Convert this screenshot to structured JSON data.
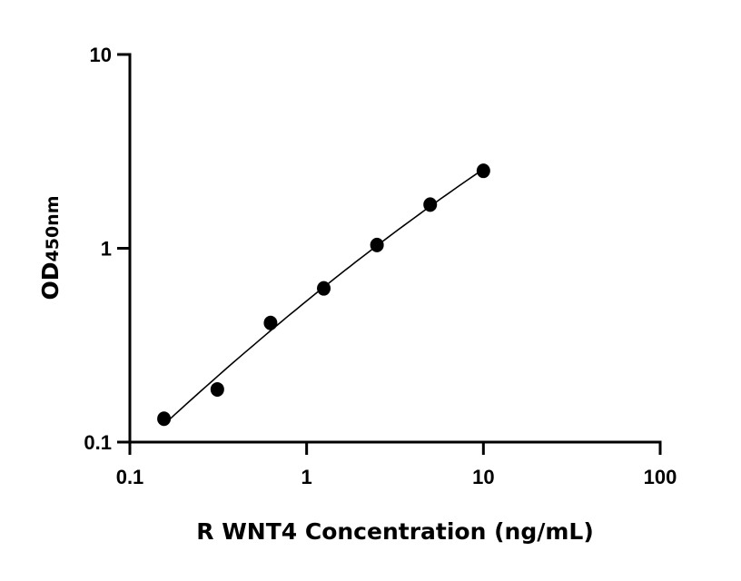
{
  "chart_data": {
    "type": "scatter",
    "title": "",
    "xlabel": "R WNT4 Concentration (ng/mL)",
    "ylabel_main": "OD",
    "ylabel_sub": "450nm",
    "x_scale": "log",
    "y_scale": "log",
    "xlim": [
      0.1,
      100
    ],
    "ylim": [
      0.1,
      10
    ],
    "x_ticks": [
      "0.1",
      "1",
      "10",
      "100"
    ],
    "y_ticks": [
      "0.1",
      "1",
      "10"
    ],
    "grid": false,
    "fit_line": true,
    "points": [
      {
        "x": 0.156,
        "y": 0.132
      },
      {
        "x": 0.3125,
        "y": 0.187
      },
      {
        "x": 0.625,
        "y": 0.412
      },
      {
        "x": 1.25,
        "y": 0.621
      },
      {
        "x": 2.5,
        "y": 1.04
      },
      {
        "x": 5,
        "y": 1.68
      },
      {
        "x": 10,
        "y": 2.51
      }
    ],
    "color": "#000000"
  }
}
